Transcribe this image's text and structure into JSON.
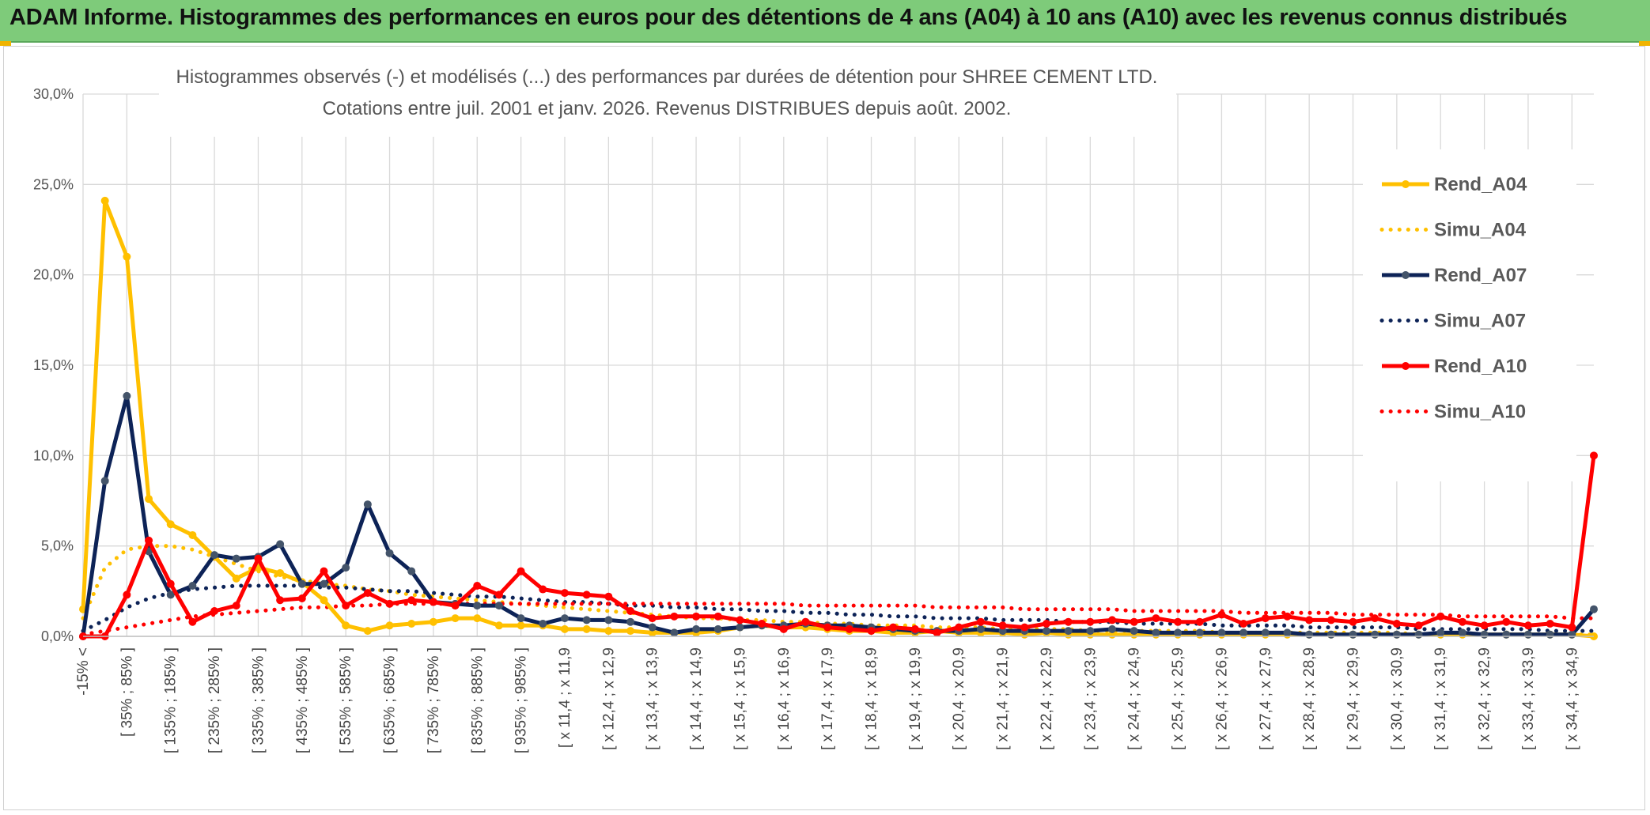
{
  "banner": {
    "title": "ADAM Informe. Histogrammes des performances en euros pour des détentions de 4 ans (A04) à 10 ans (A10) avec les revenus connus distribués"
  },
  "colors": {
    "banner": "#7ecb7a",
    "A04": "#ffc000",
    "A07": "#0d2357",
    "A07_marker": "#44546a",
    "A10": "#ff0000",
    "grid": "#d9d9d9"
  },
  "chart_data": {
    "type": "line",
    "title_line1": "Histogrammes observés (-) et modélisés (...) des performances par durées de détention pour SHREE CEMENT LTD.",
    "title_line2": "Cotations entre juil. 2001 et janv. 2026. Revenus DISTRIBUES depuis août. 2002.",
    "ylim": [
      0,
      30
    ],
    "yticks": [
      "0,0%",
      "5,0%",
      "10,0%",
      "15,0%",
      "20,0%",
      "25,0%",
      "30,0%"
    ],
    "xtick_labels": [
      "-15% <",
      "[ 35% ; 85% ]",
      "[ 135% ; 185% ]",
      "[ 235% ; 285% ]",
      "[ 335% ; 385% ]",
      "[ 435% ; 485% ]",
      "[ 535% ; 585% ]",
      "[ 635% ; 685% ]",
      "[ 735% ; 785% ]",
      "[ 835% ; 885% ]",
      "[ 935% ; 985% ]",
      "[ x 11,4 ; x 11,9",
      "[ x 12,4 ; x 12,9",
      "[ x 13,4 ; x 13,9",
      "[ x 14,4 ; x 14,9",
      "[ x 15,4 ; x 15,9",
      "[ x 16,4 ; x 16,9",
      "[ x 17,4 ; x 17,9",
      "[ x 18,4 ; x 18,9",
      "[ x 19,4 ; x 19,9",
      "[ x 20,4 ; x 20,9",
      "[ x 21,4 ; x 21,9",
      "[ x 22,4 ; x 22,9",
      "[ x 23,4 ; x 23,9",
      "[ x 24,4 ; x 24,9",
      "[ x 25,4 ; x 25,9",
      "[ x 26,4 ; x 26,9",
      "[ x 27,4 ; x 27,9",
      "[ x 28,4 ; x 28,9",
      "[ x 29,4 ; x 29,9",
      "[ x 30,4 ; x 30,9",
      "[ x 31,4 ; x 31,9",
      "[ x 32,4 ; x 32,9",
      "[ x 33,4 ; x 33,9",
      "[ x 34,4 ; x 34,9"
    ],
    "category_count": 70,
    "series": [
      {
        "name": "Rend_A04",
        "style": "solid",
        "color": "#ffc000",
        "values": [
          1.5,
          24.1,
          21.0,
          7.6,
          6.2,
          5.6,
          4.4,
          3.2,
          3.8,
          3.5,
          3.0,
          2.0,
          0.6,
          0.3,
          0.6,
          0.7,
          0.8,
          1.0,
          1.0,
          0.6,
          0.6,
          0.6,
          0.4,
          0.4,
          0.3,
          0.3,
          0.2,
          0.2,
          0.2,
          0.3,
          0.5,
          0.6,
          0.5,
          0.5,
          0.4,
          0.3,
          0.3,
          0.2,
          0.2,
          0.3,
          0.2,
          0.2,
          0.2,
          0.1,
          0.2,
          0.1,
          0.1,
          0.1,
          0.1,
          0.1,
          0.1,
          0.1,
          0.1,
          0.1,
          0.1,
          0.1,
          0.1,
          0.1,
          0.1,
          0.1,
          0.1,
          0.1,
          0.1,
          0.1,
          0.1,
          0.1,
          0.1,
          0.1,
          0.1,
          0.0
        ]
      },
      {
        "name": "Simu_A04",
        "style": "dotted",
        "color": "#ffc000",
        "values": [
          1.0,
          3.8,
          4.8,
          5.0,
          5.0,
          4.8,
          4.4,
          4.0,
          3.6,
          3.3,
          3.1,
          2.9,
          2.8,
          2.6,
          2.5,
          2.3,
          2.2,
          2.1,
          2.0,
          1.9,
          1.8,
          1.7,
          1.6,
          1.5,
          1.4,
          1.3,
          1.2,
          1.1,
          1.0,
          1.0,
          0.9,
          0.9,
          0.8,
          0.8,
          0.7,
          0.7,
          0.6,
          0.6,
          0.6,
          0.5,
          0.5,
          0.5,
          0.4,
          0.4,
          0.4,
          0.4,
          0.3,
          0.3,
          0.3,
          0.3,
          0.3,
          0.3,
          0.2,
          0.2,
          0.2,
          0.2,
          0.2,
          0.2,
          0.2,
          0.2,
          0.2,
          0.1,
          0.1,
          0.1,
          0.1,
          0.1,
          0.1,
          0.1,
          0.1,
          0.1
        ]
      },
      {
        "name": "Rend_A07",
        "style": "solid",
        "color": "#0d2357",
        "values": [
          0.0,
          8.6,
          13.3,
          4.7,
          2.3,
          2.8,
          4.5,
          4.3,
          4.4,
          5.1,
          2.9,
          2.9,
          3.8,
          7.3,
          4.6,
          3.6,
          1.9,
          1.8,
          1.7,
          1.7,
          1.0,
          0.7,
          1.0,
          0.9,
          0.9,
          0.8,
          0.5,
          0.2,
          0.4,
          0.4,
          0.5,
          0.6,
          0.6,
          0.7,
          0.6,
          0.6,
          0.5,
          0.4,
          0.3,
          0.3,
          0.3,
          0.4,
          0.3,
          0.3,
          0.3,
          0.3,
          0.3,
          0.4,
          0.3,
          0.2,
          0.2,
          0.2,
          0.2,
          0.2,
          0.2,
          0.2,
          0.1,
          0.1,
          0.1,
          0.1,
          0.1,
          0.1,
          0.2,
          0.2,
          0.1,
          0.1,
          0.1,
          0.1,
          0.1,
          1.5
        ]
      },
      {
        "name": "Simu_A07",
        "style": "dotted",
        "color": "#0d2357",
        "values": [
          0.3,
          0.9,
          1.6,
          2.1,
          2.4,
          2.6,
          2.7,
          2.8,
          2.8,
          2.8,
          2.8,
          2.7,
          2.7,
          2.6,
          2.5,
          2.5,
          2.4,
          2.3,
          2.2,
          2.2,
          2.1,
          2.0,
          1.9,
          1.9,
          1.8,
          1.7,
          1.7,
          1.6,
          1.6,
          1.5,
          1.5,
          1.4,
          1.4,
          1.3,
          1.3,
          1.2,
          1.2,
          1.1,
          1.1,
          1.0,
          1.0,
          1.0,
          0.9,
          0.9,
          0.9,
          0.8,
          0.8,
          0.8,
          0.7,
          0.7,
          0.7,
          0.7,
          0.6,
          0.6,
          0.6,
          0.6,
          0.5,
          0.5,
          0.5,
          0.5,
          0.5,
          0.4,
          0.4,
          0.4,
          0.4,
          0.4,
          0.4,
          0.3,
          0.3,
          0.3
        ]
      },
      {
        "name": "Rend_A10",
        "style": "solid",
        "color": "#ff0000",
        "values": [
          0.0,
          0.0,
          2.3,
          5.3,
          2.9,
          0.8,
          1.4,
          1.7,
          4.3,
          2.0,
          2.1,
          3.6,
          1.7,
          2.4,
          1.8,
          2.0,
          1.9,
          1.7,
          2.8,
          2.3,
          3.6,
          2.6,
          2.4,
          2.3,
          2.2,
          1.4,
          1.0,
          1.1,
          1.1,
          1.1,
          0.9,
          0.7,
          0.4,
          0.8,
          0.5,
          0.4,
          0.3,
          0.5,
          0.4,
          0.2,
          0.5,
          0.8,
          0.6,
          0.5,
          0.7,
          0.8,
          0.8,
          0.9,
          0.8,
          1.0,
          0.8,
          0.8,
          1.2,
          0.7,
          1.0,
          1.1,
          0.9,
          0.9,
          0.8,
          1.0,
          0.7,
          0.6,
          1.1,
          0.8,
          0.6,
          0.8,
          0.6,
          0.7,
          0.5,
          10.0
        ]
      },
      {
        "name": "Simu_A10",
        "style": "dotted",
        "color": "#ff0000",
        "values": [
          0.1,
          0.3,
          0.5,
          0.7,
          0.9,
          1.1,
          1.2,
          1.3,
          1.4,
          1.5,
          1.6,
          1.6,
          1.7,
          1.7,
          1.8,
          1.8,
          1.8,
          1.8,
          1.8,
          1.8,
          1.8,
          1.8,
          1.8,
          1.8,
          1.8,
          1.8,
          1.8,
          1.8,
          1.8,
          1.8,
          1.8,
          1.8,
          1.8,
          1.7,
          1.7,
          1.7,
          1.7,
          1.7,
          1.7,
          1.6,
          1.6,
          1.6,
          1.6,
          1.5,
          1.5,
          1.5,
          1.5,
          1.5,
          1.4,
          1.4,
          1.4,
          1.4,
          1.4,
          1.3,
          1.3,
          1.3,
          1.3,
          1.3,
          1.2,
          1.2,
          1.2,
          1.2,
          1.2,
          1.1,
          1.1,
          1.1,
          1.1,
          1.1,
          1.0,
          1.0
        ]
      }
    ],
    "legend": [
      "Rend_A04",
      "Simu_A04",
      "Rend_A07",
      "Simu_A07",
      "Rend_A10",
      "Simu_A10"
    ],
    "legend_position": "top-right",
    "grid": true
  }
}
